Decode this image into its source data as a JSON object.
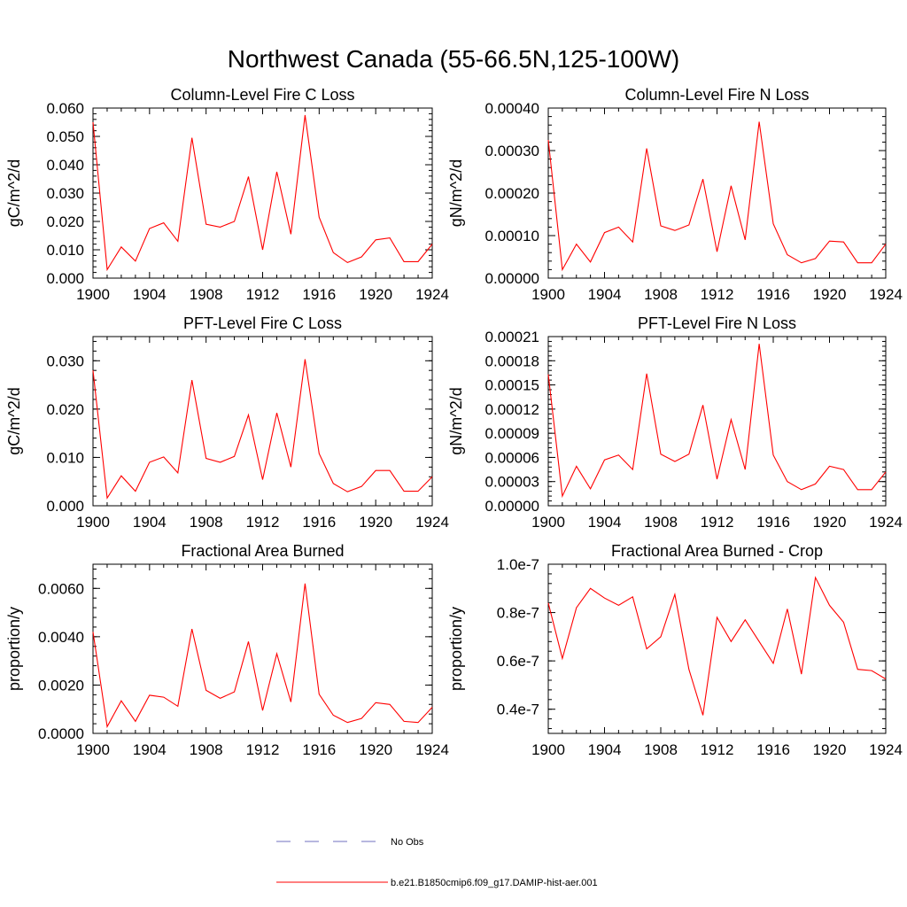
{
  "figure": {
    "title": "Northwest Canada (55-66.5N,125-100W)"
  },
  "legend": {
    "items": [
      {
        "label": "No Obs",
        "color": "#6f6fbf",
        "dash": true
      },
      {
        "label": "b.e21.B1850cmip6.f09_g17.DAMIP-hist-aer.001",
        "color": "#ff0000",
        "dash": false
      }
    ]
  },
  "chart_data": [
    {
      "type": "line",
      "title": "Column-Level Fire C Loss",
      "ylabel": "gC/m^2/d",
      "xlim": [
        1900,
        1924
      ],
      "ylim": [
        0,
        0.06
      ],
      "xticks": [
        1900,
        1904,
        1908,
        1912,
        1916,
        1920,
        1924
      ],
      "xtick_labels": [
        "1900",
        "1904",
        "1908",
        "1912",
        "1916",
        "1920",
        "1924"
      ],
      "yticks": [
        0,
        0.01,
        0.02,
        0.03,
        0.04,
        0.05,
        0.06
      ],
      "ytick_labels": [
        "0.000",
        "0.010",
        "0.020",
        "0.030",
        "0.040",
        "0.050",
        "0.060"
      ],
      "x": [
        1900,
        1901,
        1902,
        1903,
        1904,
        1905,
        1906,
        1907,
        1908,
        1909,
        1910,
        1911,
        1912,
        1913,
        1914,
        1915,
        1916,
        1917,
        1918,
        1919,
        1920,
        1921,
        1922,
        1923,
        1924
      ],
      "series": [
        {
          "values": [
            0.055,
            0.003,
            0.011,
            0.006,
            0.0175,
            0.0195,
            0.013,
            0.0495,
            0.019,
            0.018,
            0.02,
            0.0358,
            0.01,
            0.0375,
            0.0155,
            0.0575,
            0.0215,
            0.009,
            0.0055,
            0.0075,
            0.0135,
            0.0142,
            0.0058,
            0.0058,
            0.012
          ],
          "color": "#ff0000"
        }
      ]
    },
    {
      "type": "line",
      "title": "Column-Level Fire N Loss",
      "ylabel": "gN/m^2/d",
      "xlim": [
        1900,
        1924
      ],
      "ylim": [
        0,
        0.0004
      ],
      "xticks": [
        1900,
        1904,
        1908,
        1912,
        1916,
        1920,
        1924
      ],
      "xtick_labels": [
        "1900",
        "1904",
        "1908",
        "1912",
        "1916",
        "1920",
        "1924"
      ],
      "yticks": [
        0,
        0.0001,
        0.0002,
        0.0003,
        0.0004
      ],
      "ytick_labels": [
        "0.00000",
        "0.00010",
        "0.00020",
        "0.00030",
        "0.00040"
      ],
      "x": [
        1900,
        1901,
        1902,
        1903,
        1904,
        1905,
        1906,
        1907,
        1908,
        1909,
        1910,
        1911,
        1912,
        1913,
        1914,
        1915,
        1916,
        1917,
        1918,
        1919,
        1920,
        1921,
        1922,
        1923,
        1924
      ],
      "series": [
        {
          "values": [
            0.000325,
            2e-05,
            8e-05,
            3.8e-05,
            0.000107,
            0.00012,
            8.5e-05,
            0.000305,
            0.000123,
            0.000112,
            0.000125,
            0.000233,
            6.2e-05,
            0.000217,
            9e-05,
            0.000368,
            0.000128,
            5.5e-05,
            3.6e-05,
            4.6e-05,
            8.7e-05,
            8.5e-05,
            3.6e-05,
            3.6e-05,
            8e-05
          ],
          "color": "#ff0000"
        }
      ]
    },
    {
      "type": "line",
      "title": "PFT-Level Fire C Loss",
      "ylabel": "gC/m^2/d",
      "xlim": [
        1900,
        1924
      ],
      "ylim": [
        0,
        0.035
      ],
      "xticks": [
        1900,
        1904,
        1908,
        1912,
        1916,
        1920,
        1924
      ],
      "xtick_labels": [
        "1900",
        "1904",
        "1908",
        "1912",
        "1916",
        "1920",
        "1924"
      ],
      "yticks": [
        0,
        0.01,
        0.02,
        0.03
      ],
      "ytick_labels": [
        "0.000",
        "0.010",
        "0.020",
        "0.030"
      ],
      "x": [
        1900,
        1901,
        1902,
        1903,
        1904,
        1905,
        1906,
        1907,
        1908,
        1909,
        1910,
        1911,
        1912,
        1913,
        1914,
        1915,
        1916,
        1917,
        1918,
        1919,
        1920,
        1921,
        1922,
        1923,
        1924
      ],
      "series": [
        {
          "values": [
            0.028,
            0.0016,
            0.0062,
            0.003,
            0.009,
            0.0101,
            0.0068,
            0.026,
            0.0098,
            0.009,
            0.0102,
            0.0188,
            0.0054,
            0.0192,
            0.008,
            0.0303,
            0.0108,
            0.0046,
            0.0029,
            0.004,
            0.0073,
            0.0073,
            0.003,
            0.003,
            0.006
          ],
          "color": "#ff0000"
        }
      ]
    },
    {
      "type": "line",
      "title": "PFT-Level Fire N Loss",
      "ylabel": "gN/m^2/d",
      "xlim": [
        1900,
        1924
      ],
      "ylim": [
        0,
        0.00021
      ],
      "xticks": [
        1900,
        1904,
        1908,
        1912,
        1916,
        1920,
        1924
      ],
      "xtick_labels": [
        "1900",
        "1904",
        "1908",
        "1912",
        "1916",
        "1920",
        "1924"
      ],
      "yticks": [
        0,
        3e-05,
        6e-05,
        9e-05,
        0.00012,
        0.00015,
        0.00018,
        0.00021
      ],
      "ytick_labels": [
        "0.00000",
        "0.00003",
        "0.00006",
        "0.00009",
        "0.00012",
        "0.00015",
        "0.00018",
        "0.00021"
      ],
      "x": [
        1900,
        1901,
        1902,
        1903,
        1904,
        1905,
        1906,
        1907,
        1908,
        1909,
        1910,
        1911,
        1912,
        1913,
        1914,
        1915,
        1916,
        1917,
        1918,
        1919,
        1920,
        1921,
        1922,
        1923,
        1924
      ],
      "series": [
        {
          "values": [
            0.000163,
            1.2e-05,
            4.9e-05,
            2.1e-05,
            5.7e-05,
            6.3e-05,
            4.5e-05,
            0.000164,
            6.4e-05,
            5.5e-05,
            6.4e-05,
            0.000125,
            3.3e-05,
            0.000107,
            4.5e-05,
            0.000201,
            6.3e-05,
            3e-05,
            2e-05,
            2.7e-05,
            4.9e-05,
            4.5e-05,
            2e-05,
            2e-05,
            4.2e-05
          ],
          "color": "#ff0000"
        }
      ]
    },
    {
      "type": "line",
      "title": "Fractional Area Burned",
      "ylabel": "proportion/y",
      "xlim": [
        1900,
        1924
      ],
      "ylim": [
        0,
        0.007
      ],
      "xticks": [
        1900,
        1904,
        1908,
        1912,
        1916,
        1920,
        1924
      ],
      "xtick_labels": [
        "1900",
        "1904",
        "1908",
        "1912",
        "1916",
        "1920",
        "1924"
      ],
      "yticks": [
        0,
        0.002,
        0.004,
        0.006
      ],
      "ytick_labels": [
        "0.0000",
        "0.0020",
        "0.0040",
        "0.0060"
      ],
      "x": [
        1900,
        1901,
        1902,
        1903,
        1904,
        1905,
        1906,
        1907,
        1908,
        1909,
        1910,
        1911,
        1912,
        1913,
        1914,
        1915,
        1916,
        1917,
        1918,
        1919,
        1920,
        1921,
        1922,
        1923,
        1924
      ],
      "series": [
        {
          "values": [
            0.0042,
            0.00028,
            0.00135,
            0.0005,
            0.00158,
            0.0015,
            0.00112,
            0.00432,
            0.00178,
            0.00145,
            0.00172,
            0.0038,
            0.00095,
            0.0033,
            0.0013,
            0.0062,
            0.00162,
            0.00075,
            0.00045,
            0.00062,
            0.00127,
            0.0012,
            0.0005,
            0.00045,
            0.00108
          ],
          "color": "#ff0000"
        }
      ]
    },
    {
      "type": "line",
      "title": "Fractional Area Burned - Crop",
      "ylabel": "proportion/y",
      "xlim": [
        1900,
        1924
      ],
      "ylim": [
        3e-08,
        1e-07
      ],
      "xticks": [
        1900,
        1904,
        1908,
        1912,
        1916,
        1920,
        1924
      ],
      "xtick_labels": [
        "1900",
        "1904",
        "1908",
        "1912",
        "1916",
        "1920",
        "1924"
      ],
      "yticks": [
        4e-08,
        6e-08,
        8e-08,
        1e-07
      ],
      "ytick_labels": [
        "0.4e-7",
        "0.6e-7",
        "0.8e-7",
        "1.0e-7"
      ],
      "x": [
        1900,
        1901,
        1902,
        1903,
        1904,
        1905,
        1906,
        1907,
        1908,
        1909,
        1910,
        1911,
        1912,
        1913,
        1914,
        1915,
        1916,
        1917,
        1918,
        1919,
        1920,
        1921,
        1922,
        1923,
        1924
      ],
      "series": [
        {
          "values": [
            8.4e-08,
            6.1e-08,
            8.2e-08,
            9e-08,
            8.6e-08,
            8.3e-08,
            8.65e-08,
            6.5e-08,
            7e-08,
            8.75e-08,
            5.65e-08,
            3.75e-08,
            7.8e-08,
            6.8e-08,
            7.7e-08,
            6.8e-08,
            5.9e-08,
            8.15e-08,
            5.45e-08,
            9.45e-08,
            8.3e-08,
            7.6e-08,
            5.65e-08,
            5.6e-08,
            5.25e-08
          ],
          "color": "#ff0000"
        }
      ]
    }
  ]
}
